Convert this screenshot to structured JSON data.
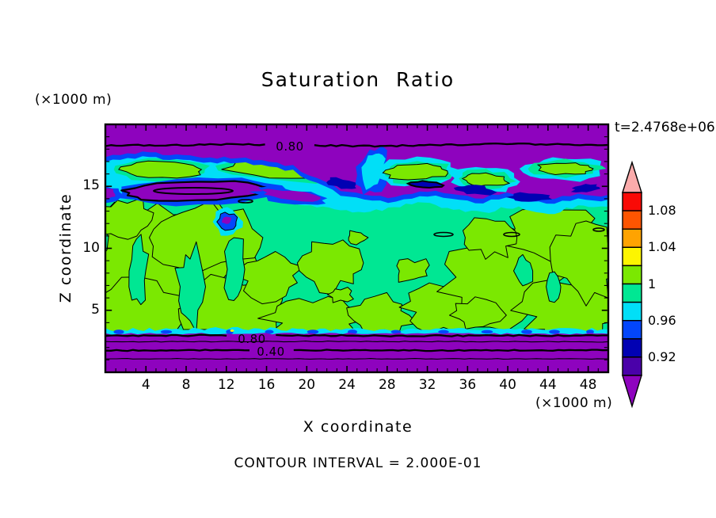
{
  "title": "Saturation Ratio",
  "time_label": "t=2.4768e+06",
  "footer_text": "CONTOUR INTERVAL = 2.000E-01",
  "x_axis": {
    "label": "X coordinate",
    "unit": "(×1000 m)",
    "tick_values": [
      4,
      8,
      12,
      16,
      20,
      24,
      28,
      32,
      36,
      40,
      44,
      48
    ]
  },
  "y_axis": {
    "label": "Z coordinate",
    "unit": "(×1000 m)",
    "tick_values": [
      5,
      10,
      15
    ]
  },
  "contour_labels": {
    "top_band": "0.80",
    "bottom_band_upper": "0.80",
    "bottom_band_lower": "0.40"
  },
  "colorbar": {
    "tick_labels": [
      {
        "value": 1.08,
        "text": "1.08"
      },
      {
        "value": 1.04,
        "text": "1.04"
      },
      {
        "value": 1.0,
        "text": "1"
      },
      {
        "value": 0.96,
        "text": "0.96"
      },
      {
        "value": 0.92,
        "text": "0.92"
      }
    ],
    "segment_colors_top_to_bottom": [
      "#F90A06",
      "#FE5501",
      "#FFA301",
      "#FDF500",
      "#7BE801",
      "#00E793",
      "#01DFF7",
      "#0346FB",
      "#0101B3",
      "#4A01A9"
    ],
    "over_color": "#FBABAB",
    "under_color": "#8E03BE",
    "range": [
      0.9,
      1.1
    ],
    "step": 0.02
  },
  "palette": {
    "purple": "#8E03BE",
    "indigo": "#4A01A9",
    "navy": "#0101B3",
    "blue": "#0346FB",
    "cyan": "#01DFF7",
    "springgreen": "#00E793",
    "chartreuse": "#7BE801",
    "yellow": "#FDF500",
    "orange": "#FFA301",
    "orangered": "#FE5501",
    "red": "#F90A06",
    "pink": "#FBABAB"
  },
  "chart_data": {
    "type": "heatmap",
    "subtype": "filled-contour-map",
    "title": "Saturation Ratio",
    "xlabel": "X coordinate",
    "ylabel": "Z coordinate",
    "x_unit": "(×1000 m)",
    "y_unit": "(×1000 m)",
    "xlim": [
      0,
      50
    ],
    "ylim": [
      0,
      20
    ],
    "x_ticks": [
      4,
      8,
      12,
      16,
      20,
      24,
      28,
      32,
      36,
      40,
      44,
      48
    ],
    "y_ticks": [
      5,
      10,
      15
    ],
    "time_annotation": "t=2.4768e+06",
    "contour_interval_label": "CONTOUR INTERVAL = 2.000E-01",
    "line_contour_interval": 0.2,
    "labeled_line_contours": [
      {
        "value": 0.8,
        "location": "upper purple band, z ≈ 18.3"
      },
      {
        "value": 0.8,
        "location": "lower purple band, z ≈ 3.0"
      },
      {
        "value": 0.4,
        "location": "lower purple band, z ≈ 1.7"
      }
    ],
    "colorbar_levels": [
      0.9,
      0.92,
      0.94,
      0.96,
      0.98,
      1.0,
      1.02,
      1.04,
      1.06,
      1.08,
      1.1
    ],
    "colorbar_labeled_levels": [
      0.92,
      0.96,
      1.0,
      1.04,
      1.08
    ],
    "legend_position": "right",
    "grid": false,
    "features": [
      "Saturation ratio < 0.8 (purple, under-range) in a band along the top edge z ≈ 17.5–20 with 0.80 contour line labeled",
      "Turbulent transition zone z ≈ 14–17.5: cyan/blue (0.94–0.98) with chartreuse islands (1.0–1.02) and purple streaks/lenses (< 0.90) outlined in black",
      "Main interior z ≈ 3.5–14: saturation ≈ 1, mottled chartreuse (1.0–1.02) and spring-green (0.98–1.0) blobs separated by thin black 1.0 contours",
      "Thin cyan/blue fringe at z ≈ 3.3, then purple under-range band z = 0–3 with horizontal contour lines 0.80 (labeled), 0.60, 0.40 (labeled), 0.20"
    ]
  }
}
